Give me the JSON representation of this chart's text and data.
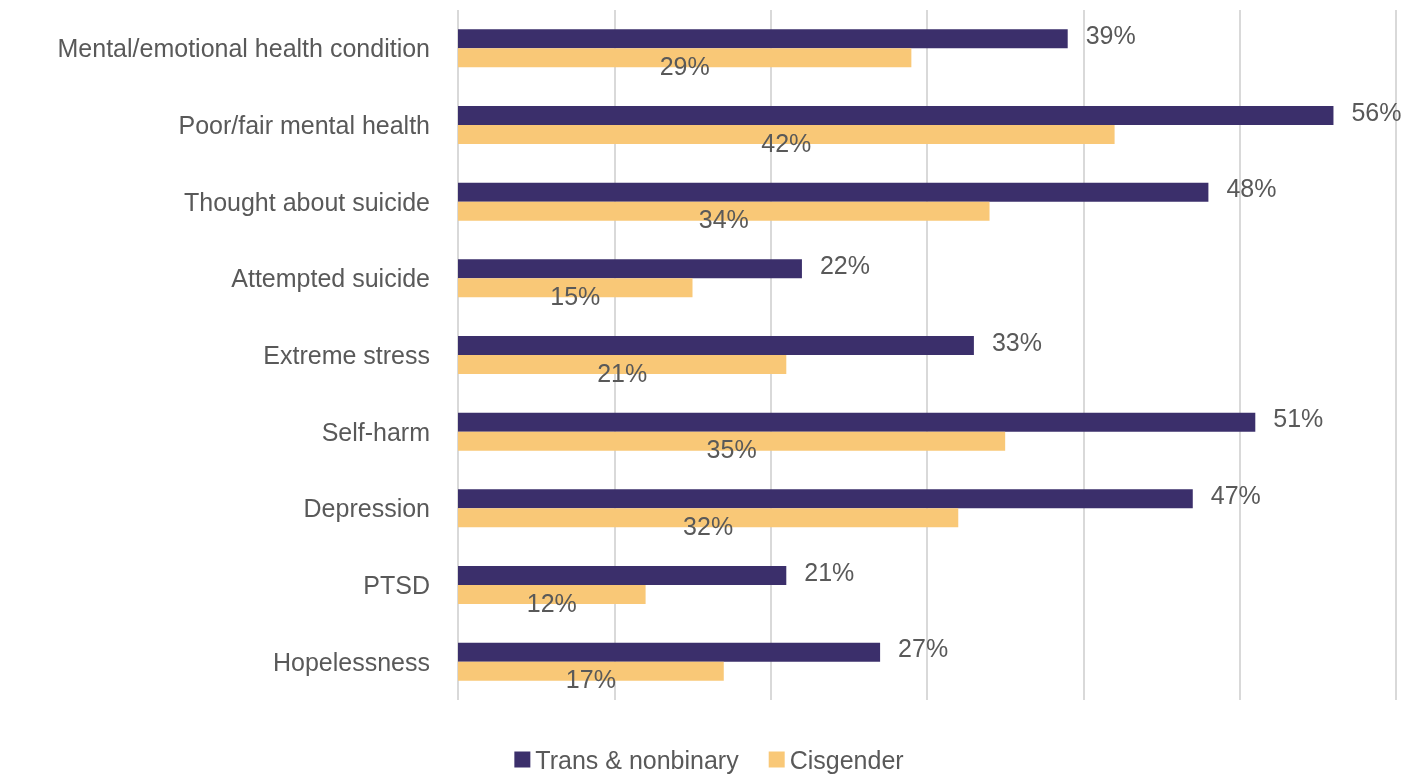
{
  "chart_data": {
    "type": "bar",
    "orientation": "horizontal",
    "categories": [
      "Mental/emotional health condition",
      "Poor/fair mental health",
      "Thought about suicide",
      "Attempted suicide",
      "Extreme stress",
      "Self-harm",
      "Depression",
      "PTSD",
      "Hopelessness"
    ],
    "series": [
      {
        "name": "Trans & nonbinary",
        "color": "#3b2f6b",
        "values": [
          39,
          56,
          48,
          22,
          33,
          51,
          47,
          21,
          27
        ],
        "value_labels": [
          "39%",
          "56%",
          "48%",
          "22%",
          "33%",
          "51%",
          "47%",
          "21%",
          "27%"
        ]
      },
      {
        "name": "Cisgender",
        "color": "#f9c877",
        "values": [
          29,
          42,
          34,
          15,
          21,
          35,
          32,
          12,
          17
        ],
        "value_labels": [
          "29%",
          "42%",
          "34%",
          "15%",
          "21%",
          "35%",
          "32%",
          "12%",
          "17%"
        ]
      }
    ],
    "xlim": [
      0,
      60
    ],
    "xticks": [
      {
        "value": 0,
        "label": null
      },
      {
        "value": 10,
        "label": null
      },
      {
        "value": 20,
        "label": null
      },
      {
        "value": 30,
        "label": null
      },
      {
        "value": 40,
        "label": null
      },
      {
        "value": 50,
        "label": null
      },
      {
        "value": 60,
        "label": null
      }
    ],
    "grid": "x",
    "legend": "bottom",
    "tick_labels": "y"
  }
}
